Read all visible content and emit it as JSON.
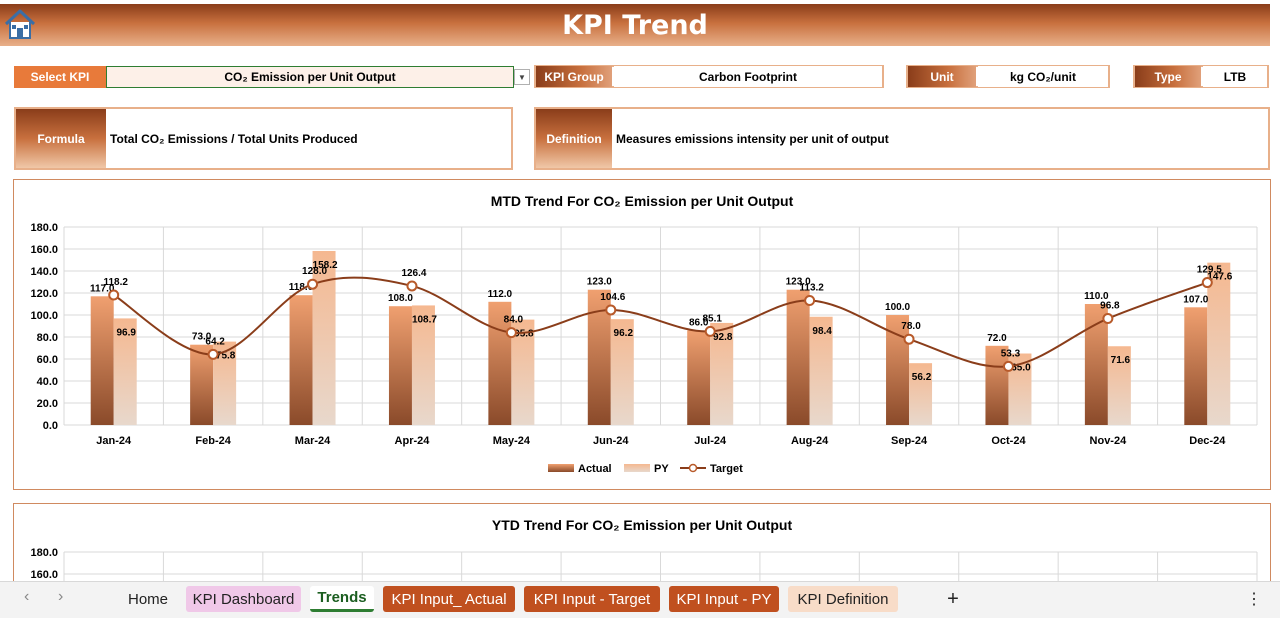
{
  "header": {
    "title": "KPI Trend"
  },
  "controls": {
    "select_kpi_label": "Select KPI",
    "select_kpi_value": "CO₂ Emission per Unit Output",
    "kpi_group_label": "KPI Group",
    "kpi_group_value": "Carbon Footprint",
    "unit_label": "Unit",
    "unit_value": "kg CO₂/unit",
    "type_label": "Type",
    "type_value": "LTB",
    "formula_label": "Formula",
    "formula_value": "Total CO₂ Emissions / Total Units Produced",
    "definition_label": "Definition",
    "definition_value": "Measures emissions intensity per unit of output"
  },
  "colors": {
    "accent": "#c8703e",
    "dark": "#8a3d1a",
    "line": "#8a3d1a"
  },
  "chart_data": [
    {
      "type": "bar",
      "title": "MTD Trend For CO₂ Emission per Unit Output",
      "categories": [
        "Jan-24",
        "Feb-24",
        "Mar-24",
        "Apr-24",
        "May-24",
        "Jun-24",
        "Jul-24",
        "Aug-24",
        "Sep-24",
        "Oct-24",
        "Nov-24",
        "Dec-24"
      ],
      "series": [
        {
          "name": "Actual",
          "kind": "bar",
          "values": [
            117.0,
            73.0,
            118.0,
            108.0,
            112.0,
            123.0,
            86.0,
            123.0,
            100.0,
            72.0,
            110.0,
            107.0
          ]
        },
        {
          "name": "PY",
          "kind": "bar",
          "values": [
            96.9,
            75.8,
            158.2,
            108.7,
            95.8,
            96.2,
            92.8,
            98.4,
            56.2,
            65.0,
            71.6,
            147.6
          ]
        },
        {
          "name": "Target",
          "kind": "line",
          "values": [
            118.2,
            64.2,
            128.0,
            126.4,
            84.0,
            104.6,
            85.1,
            113.2,
            78.0,
            53.3,
            96.8,
            129.5
          ]
        }
      ],
      "ylim": [
        0,
        180
      ],
      "yticks": [
        "0.0",
        "20.0",
        "40.0",
        "60.0",
        "80.0",
        "100.0",
        "120.0",
        "140.0",
        "160.0",
        "180.0"
      ],
      "grid": true,
      "legend": "bottom"
    },
    {
      "type": "bar",
      "title": "YTD Trend For CO₂ Emission per Unit Output",
      "yticks_visible": [
        "180.0",
        "160.0"
      ],
      "ylim": [
        0,
        180
      ],
      "grid": true
    }
  ],
  "tabs": {
    "items": [
      {
        "label": "Home"
      },
      {
        "label": "KPI Dashboard"
      },
      {
        "label": "Trends"
      },
      {
        "label": "KPI Input_ Actual"
      },
      {
        "label": "KPI Input - Target"
      },
      {
        "label": "KPI Input - PY"
      },
      {
        "label": "KPI Definition"
      }
    ],
    "add": "+",
    "more": "⋮",
    "prev": "‹",
    "next": "›"
  }
}
